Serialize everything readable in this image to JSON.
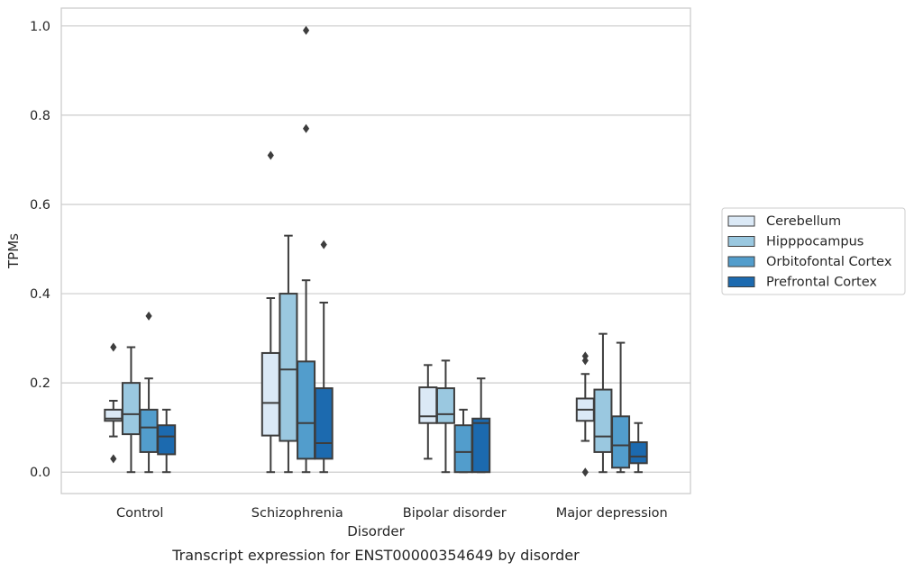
{
  "caption": "Transcript expression for ENST00000354649 by disorder",
  "chart_data": {
    "type": "box",
    "title": "",
    "xlabel": "Disorder",
    "ylabel": "TPMs",
    "ylim": [
      -0.048,
      1.04
    ],
    "yticks": [
      0.0,
      0.2,
      0.4,
      0.6,
      0.8,
      1.0
    ],
    "ytick_labels": [
      "0.0",
      "0.2",
      "0.4",
      "0.6",
      "0.8",
      "1.0"
    ],
    "grid": "horizontal",
    "legend_position": "right",
    "categories": [
      "Control",
      "Schizophrenia",
      "Bipolar disorder",
      "Major depression"
    ],
    "series": [
      {
        "name": "Cerebellum",
        "color": "#dbe9f6",
        "boxes": [
          {
            "whisker_low": 0.08,
            "q1": 0.115,
            "median": 0.12,
            "q3": 0.14,
            "whisker_high": 0.16,
            "outliers": [
              0.03,
              0.28
            ]
          },
          {
            "whisker_low": 0.0,
            "q1": 0.082,
            "median": 0.155,
            "q3": 0.267,
            "whisker_high": 0.39,
            "outliers": [
              0.71
            ]
          },
          {
            "whisker_low": 0.03,
            "q1": 0.11,
            "median": 0.125,
            "q3": 0.19,
            "whisker_high": 0.24,
            "outliers": []
          },
          {
            "whisker_low": 0.07,
            "q1": 0.115,
            "median": 0.14,
            "q3": 0.165,
            "whisker_high": 0.22,
            "outliers": [
              0.0,
              0.25,
              0.26
            ]
          }
        ]
      },
      {
        "name": "Hipppocampus",
        "color": "#9ac8e0",
        "boxes": [
          {
            "whisker_low": 0.0,
            "q1": 0.085,
            "median": 0.13,
            "q3": 0.2,
            "whisker_high": 0.28,
            "outliers": []
          },
          {
            "whisker_low": 0.0,
            "q1": 0.07,
            "median": 0.23,
            "q3": 0.4,
            "whisker_high": 0.53,
            "outliers": []
          },
          {
            "whisker_low": 0.0,
            "q1": 0.11,
            "median": 0.13,
            "q3": 0.188,
            "whisker_high": 0.25,
            "outliers": []
          },
          {
            "whisker_low": 0.0,
            "q1": 0.045,
            "median": 0.08,
            "q3": 0.185,
            "whisker_high": 0.31,
            "outliers": []
          }
        ]
      },
      {
        "name": "Orbitofontal Cortex",
        "color": "#529dcc",
        "boxes": [
          {
            "whisker_low": 0.0,
            "q1": 0.045,
            "median": 0.1,
            "q3": 0.14,
            "whisker_high": 0.21,
            "outliers": [
              0.35
            ]
          },
          {
            "whisker_low": 0.0,
            "q1": 0.03,
            "median": 0.11,
            "q3": 0.248,
            "whisker_high": 0.43,
            "outliers": [
              0.77,
              0.99
            ]
          },
          {
            "whisker_low": 0.0,
            "q1": 0.0,
            "median": 0.045,
            "q3": 0.105,
            "whisker_high": 0.14,
            "outliers": []
          },
          {
            "whisker_low": 0.0,
            "q1": 0.01,
            "median": 0.06,
            "q3": 0.125,
            "whisker_high": 0.29,
            "outliers": []
          }
        ]
      },
      {
        "name": "Prefrontal Cortex",
        "color": "#1c6aaf",
        "boxes": [
          {
            "whisker_low": 0.0,
            "q1": 0.04,
            "median": 0.08,
            "q3": 0.105,
            "whisker_high": 0.14,
            "outliers": []
          },
          {
            "whisker_low": 0.0,
            "q1": 0.03,
            "median": 0.065,
            "q3": 0.188,
            "whisker_high": 0.38,
            "outliers": [
              0.51
            ]
          },
          {
            "whisker_low": 0.0,
            "q1": 0.0,
            "median": 0.11,
            "q3": 0.12,
            "whisker_high": 0.21,
            "outliers": []
          },
          {
            "whisker_low": 0.0,
            "q1": 0.02,
            "median": 0.035,
            "q3": 0.067,
            "whisker_high": 0.11,
            "outliers": []
          }
        ]
      }
    ]
  }
}
